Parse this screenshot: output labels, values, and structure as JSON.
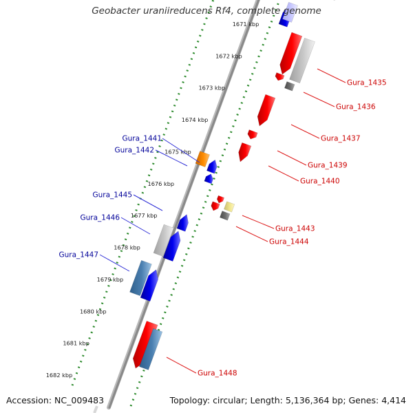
{
  "title": "Geobacter uraniireducens Rf4, complete genome",
  "footer": {
    "accession_label": "Accession:",
    "accession_value": "NC_009483",
    "topology_label": "Topology:",
    "topology_value": "circular",
    "length_label": "Length:",
    "length_value": "5,136,364 bp",
    "genes_label": "Genes:",
    "genes_value": "4,414"
  },
  "ruler": {
    "unit": "kbp",
    "ticks": [
      1671,
      1672,
      1673,
      1674,
      1675,
      1676,
      1677,
      1678,
      1679,
      1680,
      1681,
      1682
    ]
  },
  "colors": {
    "backbone": "#8a8a8a",
    "scale_dots": "#2e8b2e",
    "forward_gene": "#ff0000",
    "reverse_gene": "#0000ee",
    "label_forward": "#cc0000",
    "label_reverse": "#000099",
    "gray_feature": "#c8c8c8",
    "steel_feature": "#4a7fb0",
    "orange_feature": "#ff8c00",
    "yellow_feature": "#f0e68c",
    "dark_gray_feature": "#6e6e6e"
  },
  "gene_labels": {
    "left": [
      "Gura_1441",
      "Gura_1442",
      "Gura_1445",
      "Gura_1446",
      "Gura_1447"
    ],
    "right": [
      "Gura_1435",
      "Gura_1436",
      "Gura_1437",
      "Gura_1439",
      "Gura_1440",
      "Gura_1443",
      "Gura_1444",
      "Gura_1448"
    ]
  }
}
